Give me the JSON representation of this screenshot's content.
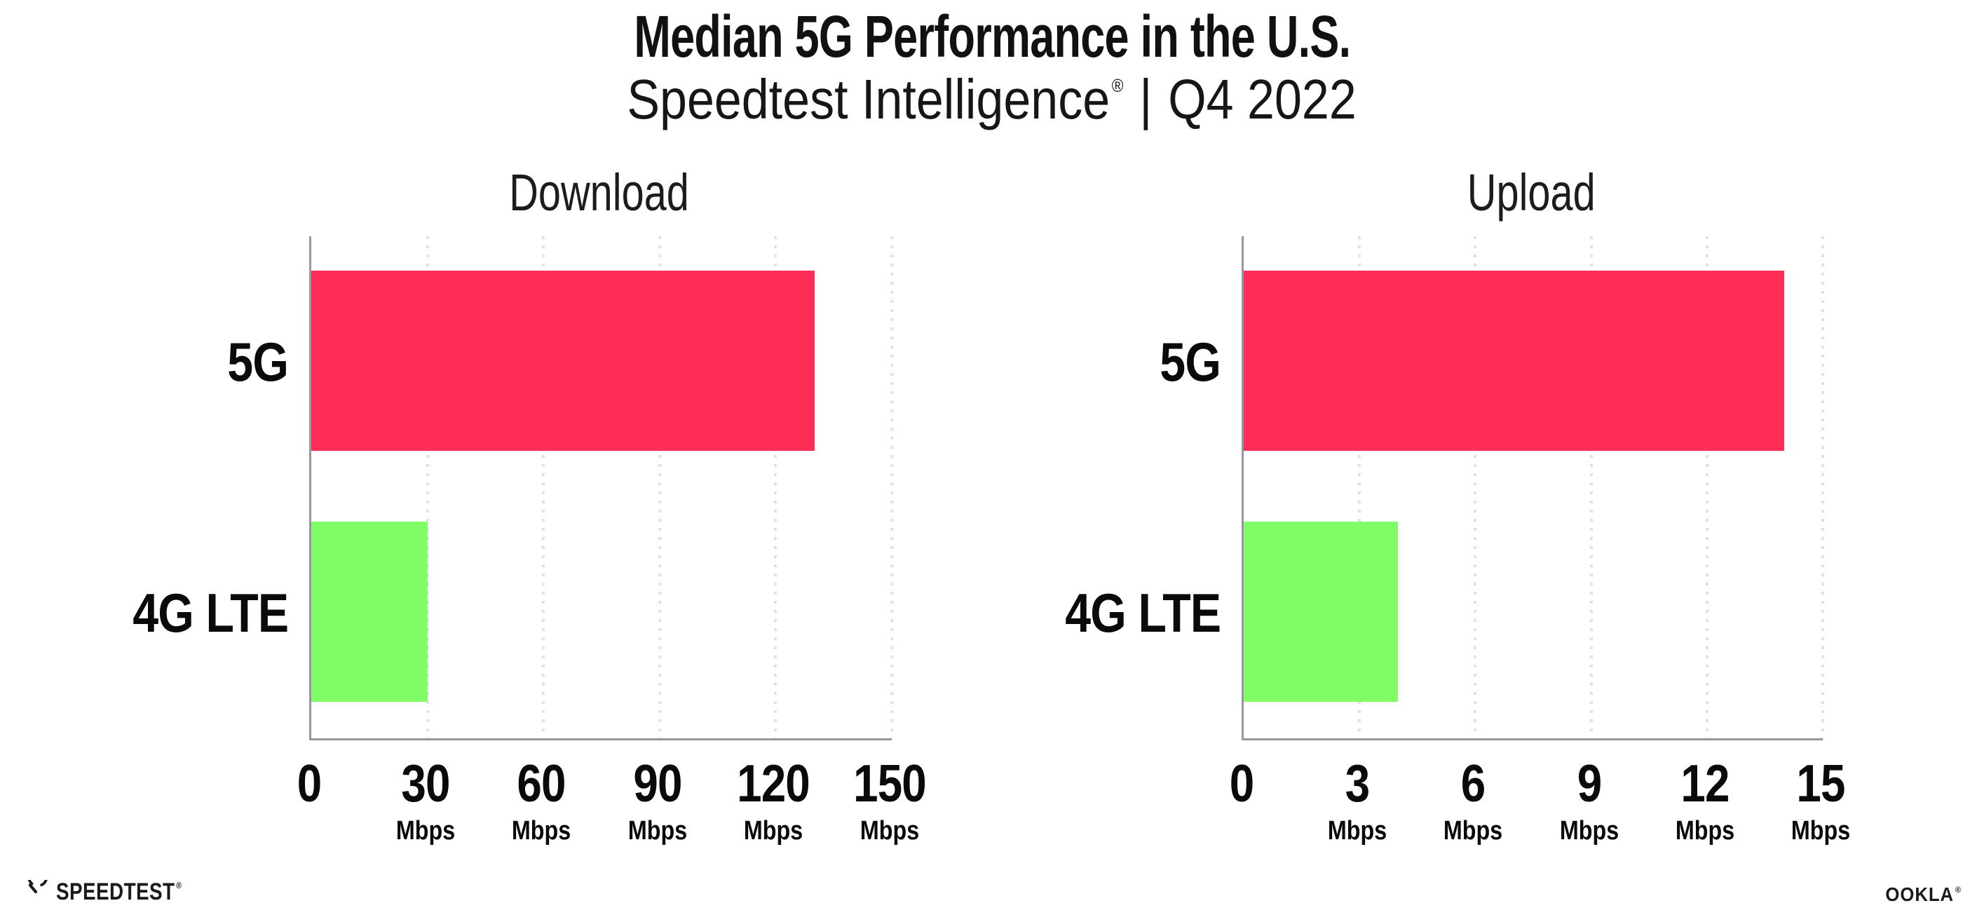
{
  "header": {
    "title": "Median 5G Performance in the U.S.",
    "subtitle_brand": "Speedtest Intelligence",
    "subtitle_mark": "®",
    "subtitle_separator": "|",
    "subtitle_period": "Q4 2022"
  },
  "chart_data": [
    {
      "type": "bar",
      "orientation": "horizontal",
      "title": "Download",
      "categories": [
        "5G",
        "4G LTE"
      ],
      "values": [
        130,
        30
      ],
      "unit": "Mbps",
      "xlim": [
        0,
        150
      ],
      "xticks": [
        0,
        30,
        60,
        90,
        120,
        150
      ],
      "bar_colors": [
        "#FD2D58",
        "#80FC66"
      ],
      "grid": "vertical-dotted",
      "legend": "none"
    },
    {
      "type": "bar",
      "orientation": "horizontal",
      "title": "Upload",
      "categories": [
        "5G",
        "4G LTE"
      ],
      "values": [
        14,
        4
      ],
      "unit": "Mbps",
      "xlim": [
        0,
        15
      ],
      "xticks": [
        0,
        3,
        6,
        9,
        12,
        15
      ],
      "bar_colors": [
        "#FD2D58",
        "#80FC66"
      ],
      "grid": "vertical-dotted",
      "legend": "none"
    }
  ],
  "footer": {
    "speedtest_logo_text": "SPEEDTEST",
    "speedtest_mark": "®",
    "ookla_logo_text": "OOKLA",
    "ookla_mark": "®"
  },
  "colors": {
    "bar_5g": "#FD2D58",
    "bar_4g_lte": "#80FC66",
    "axis": "#97979D",
    "gridline_dots": "#DFE0EA",
    "text": "#111111",
    "background": "#FFFFFF"
  }
}
